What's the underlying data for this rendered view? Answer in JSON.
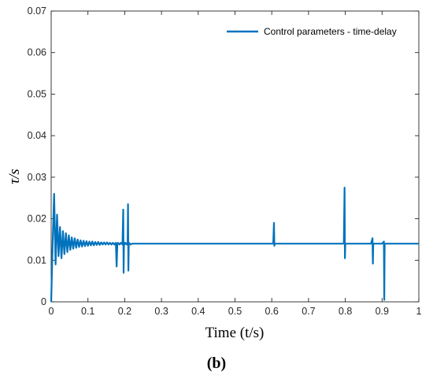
{
  "chart_data": {
    "type": "line",
    "xlabel": "Time (t/s)",
    "ylabel": "τ/s",
    "xlim": [
      0,
      1
    ],
    "ylim": [
      0,
      0.07
    ],
    "xticks": [
      "0",
      "0.1",
      "0.2",
      "0.3",
      "0.4",
      "0.5",
      "0.6",
      "0.7",
      "0.8",
      "0.9",
      "1"
    ],
    "yticks": [
      "0",
      "0.01",
      "0.02",
      "0.03",
      "0.04",
      "0.05",
      "0.06",
      "0.07"
    ],
    "grid": false,
    "legend_position": "top-right",
    "color": "#0072BD",
    "series": [
      {
        "name": "Control parameters - time-delay",
        "x": [
          0,
          0.004,
          0.008,
          0.012,
          0.016,
          0.02,
          0.024,
          0.028,
          0.032,
          0.036,
          0.04,
          0.044,
          0.048,
          0.052,
          0.056,
          0.06,
          0.064,
          0.068,
          0.072,
          0.076,
          0.08,
          0.084,
          0.088,
          0.092,
          0.096,
          0.1,
          0.104,
          0.108,
          0.112,
          0.116,
          0.12,
          0.124,
          0.128,
          0.132,
          0.136,
          0.14,
          0.144,
          0.148,
          0.152,
          0.156,
          0.16,
          0.164,
          0.168,
          0.172,
          0.176,
          0.178,
          0.18,
          0.182,
          0.186,
          0.19,
          0.194,
          0.196,
          0.197,
          0.198,
          0.199,
          0.2,
          0.202,
          0.206,
          0.208,
          0.209,
          0.21,
          0.211,
          0.212,
          0.216,
          0.22,
          0.3,
          0.4,
          0.5,
          0.604,
          0.606,
          0.607,
          0.608,
          0.61,
          0.7,
          0.796,
          0.798,
          0.799,
          0.8,
          0.801,
          0.804,
          0.87,
          0.874,
          0.875,
          0.876,
          0.877,
          0.88,
          0.9,
          0.905,
          0.906,
          0.907,
          0.908,
          0.91,
          1.0
        ],
        "y": [
          0,
          0.014,
          0.026,
          0.009,
          0.021,
          0.011,
          0.018,
          0.0105,
          0.017,
          0.0115,
          0.0165,
          0.012,
          0.016,
          0.0125,
          0.0155,
          0.0128,
          0.0153,
          0.013,
          0.015,
          0.0132,
          0.0148,
          0.0133,
          0.0147,
          0.0134,
          0.0146,
          0.0135,
          0.0145,
          0.0136,
          0.0145,
          0.0136,
          0.0144,
          0.0137,
          0.0144,
          0.0137,
          0.0143,
          0.0138,
          0.0143,
          0.0138,
          0.0143,
          0.0138,
          0.0142,
          0.0138,
          0.0142,
          0.0138,
          0.0142,
          0.0085,
          0.014,
          0.0142,
          0.0138,
          0.0142,
          0.0138,
          0.0222,
          0.007,
          0.014,
          0.0142,
          0.0138,
          0.0142,
          0.0138,
          0.0142,
          0.0235,
          0.0075,
          0.014,
          0.0142,
          0.0138,
          0.014,
          0.014,
          0.014,
          0.014,
          0.014,
          0.019,
          0.0135,
          0.014,
          0.014,
          0.014,
          0.014,
          0.0275,
          0.0105,
          0.014,
          0.014,
          0.014,
          0.014,
          0.0153,
          0.0092,
          0.014,
          0.014,
          0.014,
          0.014,
          0.0145,
          0.0005,
          0.014,
          0.014,
          0.014,
          0.014
        ]
      }
    ]
  },
  "panel_label": "(b)"
}
